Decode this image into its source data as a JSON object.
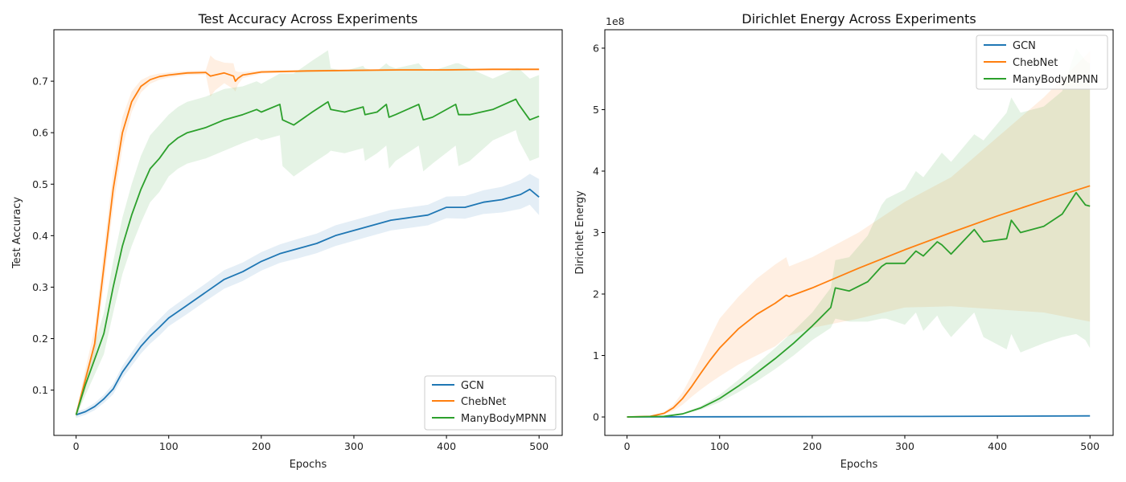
{
  "colors": {
    "GCN": "#1f77b4",
    "ChebNet": "#ff7f0e",
    "ManyBodyMPNN": "#2ca02c"
  },
  "chart_data": [
    {
      "type": "line",
      "title": "Test Accuracy Across Experiments",
      "xlabel": "Epochs",
      "ylabel": "Test Accuracy",
      "xlim": [
        -24,
        525
      ],
      "ylim": [
        0.012,
        0.8
      ],
      "xticks": [
        0,
        100,
        200,
        300,
        400,
        500
      ],
      "yticks": [
        0.1,
        0.2,
        0.3,
        0.4,
        0.5,
        0.6,
        0.7
      ],
      "ytick_labels": [
        "0.1",
        "0.2",
        "0.3",
        "0.4",
        "0.5",
        "0.6",
        "0.7"
      ],
      "legend_position": "lower-right",
      "grid": false,
      "series": [
        {
          "name": "GCN",
          "x": [
            0,
            10,
            20,
            30,
            40,
            50,
            60,
            70,
            80,
            90,
            100,
            120,
            140,
            160,
            180,
            200,
            220,
            240,
            260,
            280,
            300,
            320,
            340,
            360,
            380,
            400,
            420,
            440,
            460,
            480,
            490,
            500
          ],
          "y": [
            0.052,
            0.058,
            0.068,
            0.083,
            0.102,
            0.135,
            0.16,
            0.185,
            0.205,
            0.222,
            0.24,
            0.265,
            0.29,
            0.315,
            0.33,
            0.35,
            0.365,
            0.375,
            0.385,
            0.4,
            0.41,
            0.42,
            0.43,
            0.435,
            0.44,
            0.455,
            0.455,
            0.465,
            0.47,
            0.48,
            0.49,
            0.475
          ],
          "band": [
            0.006,
            0.006,
            0.007,
            0.008,
            0.01,
            0.012,
            0.013,
            0.014,
            0.015,
            0.016,
            0.016,
            0.017,
            0.017,
            0.018,
            0.018,
            0.018,
            0.018,
            0.019,
            0.019,
            0.02,
            0.02,
            0.02,
            0.02,
            0.02,
            0.02,
            0.021,
            0.022,
            0.023,
            0.025,
            0.028,
            0.03,
            0.035
          ]
        },
        {
          "name": "ChebNet",
          "x": [
            0,
            10,
            20,
            30,
            40,
            50,
            60,
            70,
            80,
            90,
            100,
            120,
            140,
            145,
            150,
            160,
            170,
            172,
            175,
            180,
            200,
            250,
            300,
            350,
            400,
            450,
            500
          ],
          "y": [
            0.052,
            0.12,
            0.19,
            0.34,
            0.49,
            0.6,
            0.66,
            0.69,
            0.703,
            0.709,
            0.712,
            0.716,
            0.717,
            0.71,
            0.712,
            0.716,
            0.71,
            0.7,
            0.706,
            0.712,
            0.718,
            0.72,
            0.721,
            0.722,
            0.722,
            0.723,
            0.723
          ],
          "band": [
            0.005,
            0.02,
            0.03,
            0.035,
            0.035,
            0.03,
            0.02,
            0.012,
            0.008,
            0.006,
            0.005,
            0.004,
            0.004,
            0.04,
            0.03,
            0.02,
            0.025,
            0.02,
            0.012,
            0.006,
            0.003,
            0.002,
            0.002,
            0.002,
            0.002,
            0.002,
            0.002
          ]
        },
        {
          "name": "ManyBodyMPNN",
          "x": [
            0,
            10,
            20,
            30,
            40,
            50,
            60,
            70,
            80,
            90,
            100,
            110,
            120,
            140,
            160,
            180,
            195,
            200,
            220,
            223,
            235,
            255,
            272,
            275,
            290,
            310,
            312,
            325,
            335,
            338,
            345,
            370,
            375,
            385,
            410,
            413,
            425,
            450,
            475,
            478,
            490,
            500
          ],
          "y": [
            0.052,
            0.11,
            0.16,
            0.21,
            0.3,
            0.38,
            0.44,
            0.49,
            0.53,
            0.55,
            0.575,
            0.59,
            0.6,
            0.61,
            0.625,
            0.635,
            0.645,
            0.64,
            0.655,
            0.625,
            0.615,
            0.64,
            0.66,
            0.645,
            0.64,
            0.65,
            0.635,
            0.64,
            0.655,
            0.63,
            0.635,
            0.655,
            0.625,
            0.63,
            0.655,
            0.635,
            0.635,
            0.645,
            0.665,
            0.655,
            0.625,
            0.632
          ],
          "band": [
            0.005,
            0.02,
            0.03,
            0.04,
            0.05,
            0.055,
            0.06,
            0.065,
            0.065,
            0.065,
            0.06,
            0.06,
            0.06,
            0.06,
            0.06,
            0.055,
            0.055,
            0.055,
            0.06,
            0.09,
            0.1,
            0.1,
            0.1,
            0.08,
            0.08,
            0.08,
            0.09,
            0.08,
            0.08,
            0.1,
            0.09,
            0.08,
            0.1,
            0.09,
            0.08,
            0.1,
            0.09,
            0.06,
            0.06,
            0.07,
            0.08,
            0.08
          ]
        }
      ]
    },
    {
      "type": "line",
      "title": "Dirichlet Energy Across Experiments",
      "xlabel": "Epochs",
      "ylabel": "Dirichlet Energy",
      "y_offset_label": "1e8",
      "xlim": [
        -24,
        525
      ],
      "ylim": [
        -0.3,
        6.3
      ],
      "xticks": [
        0,
        100,
        200,
        300,
        400,
        500
      ],
      "yticks": [
        0,
        1,
        2,
        3,
        4,
        5,
        6
      ],
      "ytick_labels": [
        "0",
        "1",
        "2",
        "3",
        "4",
        "5",
        "6"
      ],
      "legend_position": "top-right",
      "grid": false,
      "series": [
        {
          "name": "GCN",
          "x": [
            0,
            100,
            200,
            300,
            400,
            500
          ],
          "y": [
            0.0,
            0.003,
            0.006,
            0.009,
            0.012,
            0.018
          ],
          "band": [
            0.0,
            0.001,
            0.002,
            0.003,
            0.004,
            0.006
          ]
        },
        {
          "name": "ChebNet",
          "x": [
            0,
            25,
            40,
            50,
            60,
            70,
            80,
            90,
            100,
            120,
            140,
            160,
            172,
            175,
            200,
            250,
            300,
            350,
            400,
            450,
            500
          ],
          "y": [
            0.0,
            0.01,
            0.06,
            0.15,
            0.3,
            0.5,
            0.72,
            0.93,
            1.12,
            1.43,
            1.67,
            1.85,
            1.98,
            1.96,
            2.1,
            2.42,
            2.72,
            3.0,
            3.27,
            3.52,
            3.76
          ],
          "lower": [
            0.0,
            0.01,
            0.04,
            0.1,
            0.2,
            0.33,
            0.45,
            0.56,
            0.66,
            0.85,
            1.0,
            1.15,
            1.3,
            1.32,
            1.45,
            1.6,
            1.78,
            1.8,
            1.75,
            1.7,
            1.55
          ],
          "upper": [
            0.0,
            0.01,
            0.08,
            0.2,
            0.4,
            0.68,
            0.98,
            1.3,
            1.6,
            1.95,
            2.25,
            2.48,
            2.6,
            2.45,
            2.6,
            3.0,
            3.5,
            3.9,
            4.55,
            5.2,
            5.95
          ]
        },
        {
          "name": "ManyBodyMPNN",
          "x": [
            0,
            40,
            60,
            80,
            100,
            120,
            140,
            160,
            180,
            200,
            220,
            225,
            240,
            260,
            275,
            280,
            300,
            312,
            320,
            335,
            340,
            350,
            375,
            385,
            410,
            415,
            425,
            450,
            470,
            485,
            495,
            500
          ],
          "y": [
            0.0,
            0.01,
            0.05,
            0.15,
            0.3,
            0.5,
            0.72,
            0.95,
            1.2,
            1.48,
            1.78,
            2.1,
            2.05,
            2.2,
            2.45,
            2.5,
            2.5,
            2.7,
            2.62,
            2.85,
            2.8,
            2.65,
            3.05,
            2.85,
            2.9,
            3.2,
            3.0,
            3.1,
            3.3,
            3.65,
            3.45,
            3.43
          ],
          "lower": [
            0.0,
            0.01,
            0.04,
            0.12,
            0.24,
            0.4,
            0.58,
            0.78,
            1.0,
            1.25,
            1.45,
            1.6,
            1.55,
            1.55,
            1.6,
            1.6,
            1.5,
            1.7,
            1.4,
            1.65,
            1.5,
            1.3,
            1.7,
            1.3,
            1.1,
            1.35,
            1.05,
            1.2,
            1.3,
            1.35,
            1.25,
            1.12
          ],
          "upper": [
            0.0,
            0.01,
            0.06,
            0.18,
            0.36,
            0.6,
            0.86,
            1.12,
            1.4,
            1.7,
            2.1,
            2.55,
            2.6,
            2.95,
            3.45,
            3.55,
            3.7,
            4.0,
            3.9,
            4.2,
            4.3,
            4.15,
            4.6,
            4.5,
            4.95,
            5.2,
            4.95,
            5.05,
            5.3,
            6.0,
            5.8,
            5.75
          ]
        }
      ]
    }
  ]
}
